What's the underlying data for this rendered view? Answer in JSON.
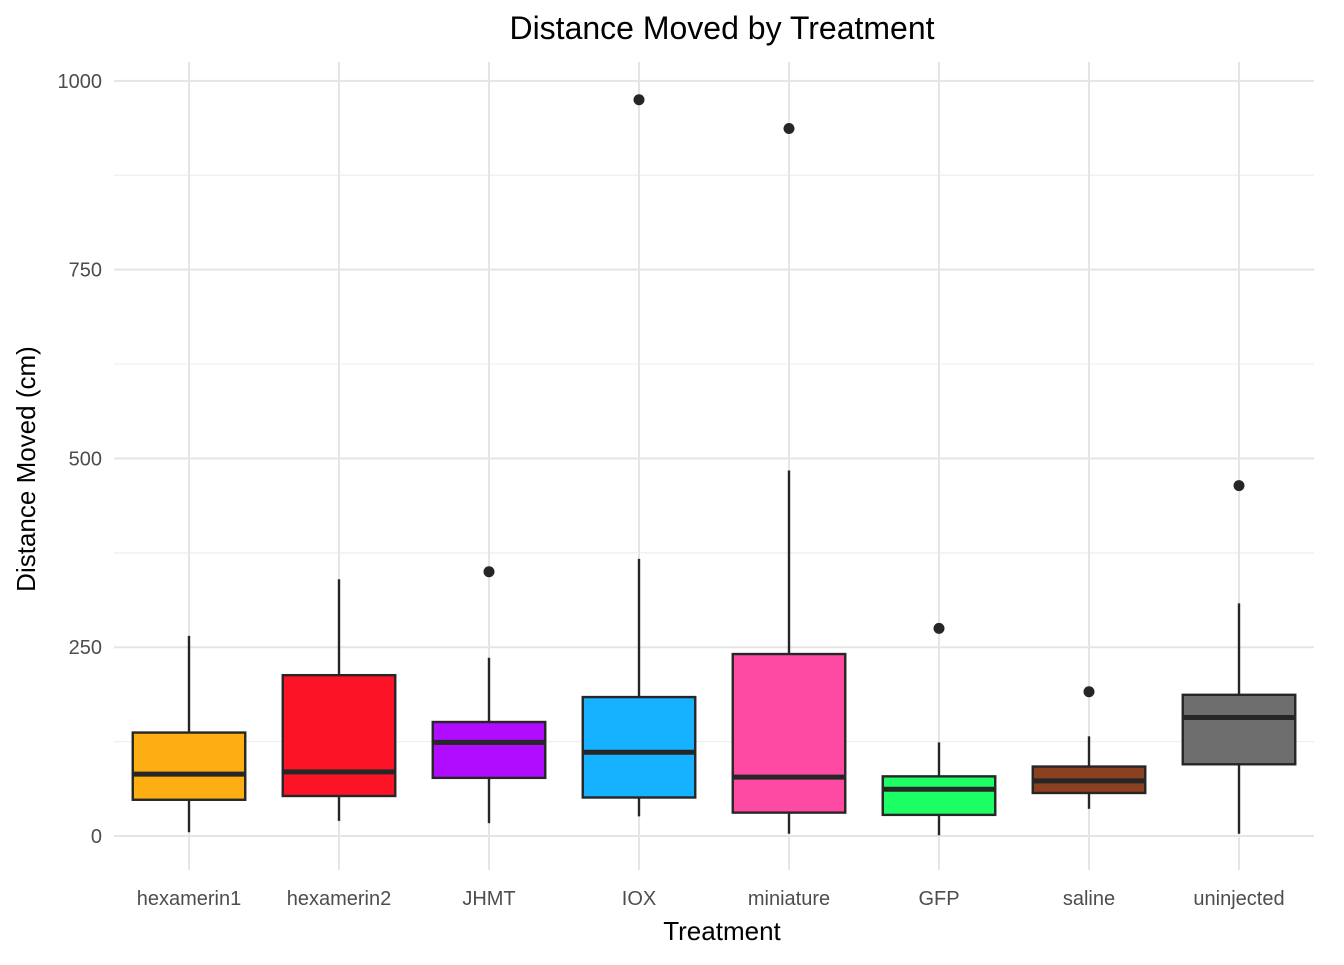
{
  "chart_data": {
    "type": "boxplot",
    "title": "Distance Moved by Treatment",
    "xlabel": "Treatment",
    "ylabel": "Distance Moved (cm)",
    "ylim": [
      -45,
      1025
    ],
    "yticks": [
      0,
      250,
      500,
      750,
      1000
    ],
    "yticks_minor": [
      125,
      375,
      625,
      875
    ],
    "grid": true,
    "legend": "none",
    "categories": [
      "hexamerin1",
      "hexamerin2",
      "JHMT",
      "IOX",
      "miniature",
      "GFP",
      "saline",
      "uninjected"
    ],
    "boxes": [
      {
        "name": "hexamerin1",
        "min": 5,
        "q1": 48,
        "median": 82,
        "q3": 137,
        "max": 265,
        "outliers": [],
        "color": "#FCAE12"
      },
      {
        "name": "hexamerin2",
        "min": 20,
        "q1": 53,
        "median": 85,
        "q3": 213,
        "max": 340,
        "outliers": [],
        "color": "#FC1426"
      },
      {
        "name": "JHMT",
        "min": 17,
        "q1": 77,
        "median": 124,
        "q3": 151,
        "max": 236,
        "outliers": [
          350
        ],
        "color": "#B00CFF"
      },
      {
        "name": "IOX",
        "min": 26,
        "q1": 51,
        "median": 111,
        "q3": 184,
        "max": 367,
        "outliers": [
          975
        ],
        "color": "#17B2FF"
      },
      {
        "name": "miniature",
        "min": 3,
        "q1": 31,
        "median": 78,
        "q3": 241,
        "max": 484,
        "outliers": [
          937
        ],
        "color": "#FF4AA3"
      },
      {
        "name": "GFP",
        "min": 1,
        "q1": 28,
        "median": 62,
        "q3": 79,
        "max": 124,
        "outliers": [
          275
        ],
        "color": "#1BFF64"
      },
      {
        "name": "saline",
        "min": 36,
        "q1": 57,
        "median": 73,
        "q3": 92,
        "max": 132,
        "outliers": [
          191
        ],
        "color": "#8B4020"
      },
      {
        "name": "uninjected",
        "min": 3,
        "q1": 95,
        "median": 157,
        "q3": 187,
        "max": 308,
        "outliers": [
          464
        ],
        "color": "#6E6E6E"
      }
    ]
  }
}
